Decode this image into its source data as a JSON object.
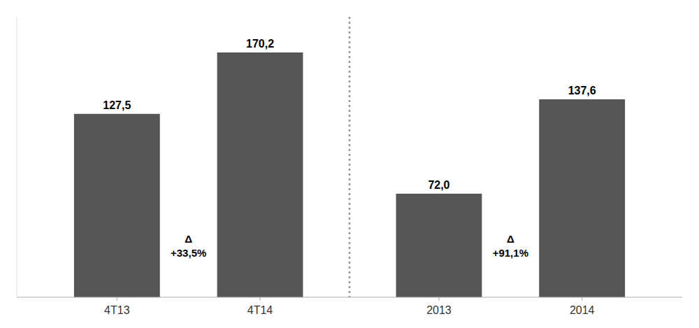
{
  "chart_data": {
    "type": "bar",
    "categories": [
      "4T13",
      "4T14",
      "2013",
      "2014"
    ],
    "values": [
      127.5,
      170.2,
      72.0,
      137.6
    ],
    "value_labels": [
      "127,5",
      "170,2",
      "72,0",
      "137,6"
    ],
    "color": "#555555",
    "ylim": [
      0,
      195
    ],
    "data_labels": true,
    "tick_labels": "x",
    "grid": false,
    "annotations": [
      {
        "text": "Δ\n+33,5%"
      },
      {
        "text": "Δ\n+91,1%"
      }
    ]
  }
}
